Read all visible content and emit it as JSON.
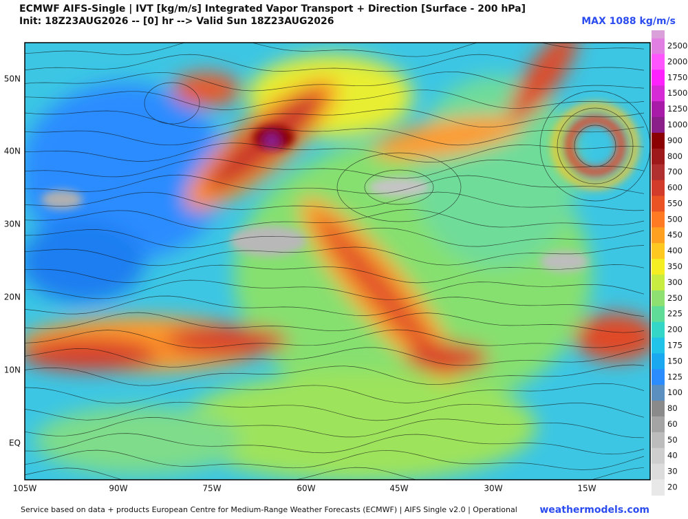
{
  "header": {
    "title": "ECMWF AIFS-Single | IVT [kg/m/s] Integrated Vapor Transport + Direction [Surface - 200 hPa]",
    "subtitle": "Init: 18Z23AUG2026 -- [0] hr --> Valid Sun 18Z23AUG2026",
    "max_label": "MAX 1088 kg/m/s"
  },
  "map": {
    "lat_labels": [
      "50N",
      "40N",
      "30N",
      "20N",
      "10N",
      "EQ"
    ],
    "lon_labels": [
      "105W",
      "90W",
      "75W",
      "60W",
      "45W",
      "30W",
      "15W"
    ]
  },
  "colorbar": {
    "levels": [
      2500,
      2000,
      1750,
      1500,
      1250,
      1000,
      900,
      800,
      700,
      600,
      550,
      500,
      450,
      400,
      350,
      300,
      250,
      225,
      200,
      175,
      150,
      125,
      100,
      80,
      60,
      50,
      40,
      30,
      20
    ],
    "colors": [
      "#e27fe2",
      "#ff55ff",
      "#ff22ff",
      "#d62ad6",
      "#a81aa8",
      "#8a1f8a",
      "#8b0000",
      "#9e1a1a",
      "#b03030",
      "#d23a2a",
      "#ea5424",
      "#ff7a22",
      "#ffa020",
      "#ffc820",
      "#f4ee22",
      "#c8ec40",
      "#8ee070",
      "#5edc98",
      "#34d6c8",
      "#22c3e8",
      "#1aa8f0",
      "#2a8cff",
      "#5b8fbf",
      "#8a8a8a",
      "#a4a4a4",
      "#bcbcbc",
      "#cecece",
      "#dcdcdc",
      "#e8e8e8"
    ]
  },
  "footer": {
    "credit": "Service based on data + products European Centre for Medium-Range Weather Forecasts (ECMWF) | AIFS Single v2.0 | Operational",
    "site": "weathermodels.com"
  }
}
